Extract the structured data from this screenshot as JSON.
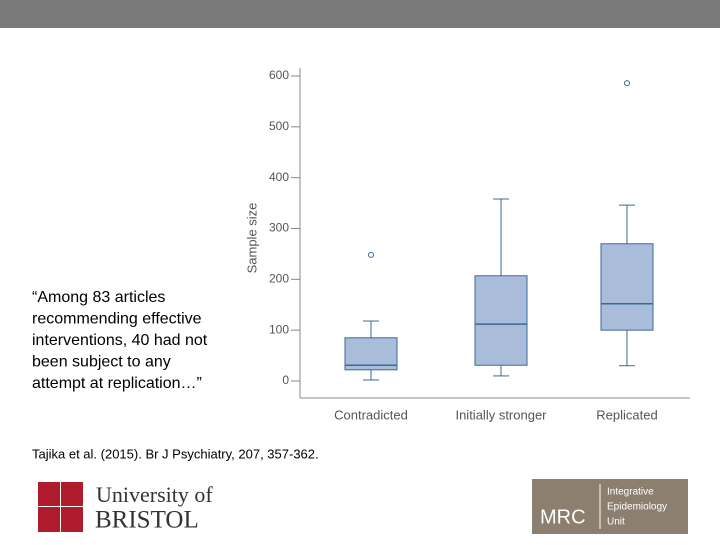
{
  "quote": [
    "“Among 83 articles",
    "recommending effective",
    "interventions, 40 had not",
    "been subject to any",
    "attempt at replication…”"
  ],
  "citation": "Tajika et al. (2015). Br J Psychiatry, 207, 357-362.",
  "bristol_logo": {
    "line1": "University of",
    "line2": "BRISTOL"
  },
  "mrc_logo": {
    "name": "MRC",
    "unit": [
      "Integrative",
      "Epidemiology",
      "Unit"
    ]
  },
  "chart_data": {
    "type": "box",
    "ylabel": "Sample size",
    "categories": [
      "Contradicted",
      "Initially stronger",
      "Replicated"
    ],
    "whisker_low": [
      2,
      10,
      30
    ],
    "q1": [
      22,
      31,
      100
    ],
    "median": [
      31,
      112,
      152
    ],
    "q3": [
      85,
      207,
      270
    ],
    "whisker_high": [
      118,
      358,
      346
    ],
    "outliers": [
      [
        248
      ],
      [],
      [
        586
      ]
    ],
    "box_color": "#a9bddb",
    "line_color": "#3a6a96",
    "ylim": [
      0,
      600
    ],
    "yticks": [
      0,
      100,
      200,
      300,
      400,
      500,
      600
    ],
    "grid": false
  }
}
